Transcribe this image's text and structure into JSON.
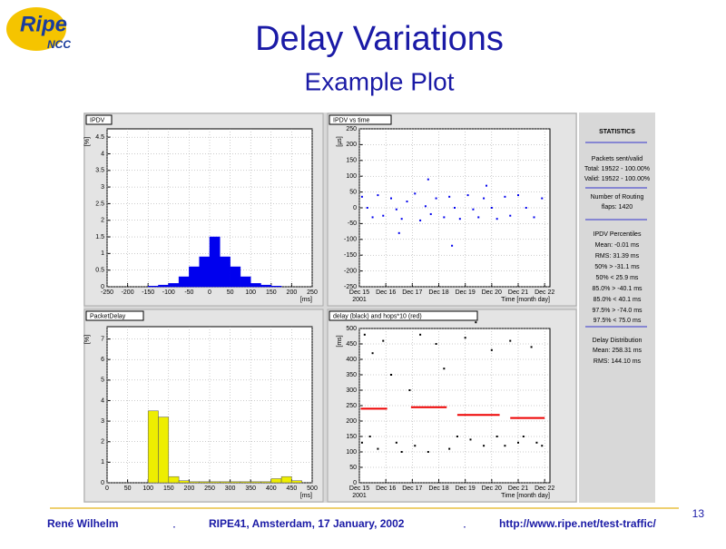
{
  "header": {
    "title": "Delay Variations",
    "subtitle": "Example Plot",
    "logo": "Ripe",
    "logo_sub": "NCC"
  },
  "chart_data": [
    {
      "type": "histogram",
      "title": "IPDV",
      "xlabel": "[ms]",
      "ylabel": "[%]",
      "color": "#0000ee",
      "bins": [
        -250,
        -225,
        -200,
        -175,
        -150,
        -125,
        -100,
        -75,
        -50,
        -25,
        0,
        25,
        50,
        75,
        100,
        125,
        150,
        175,
        200,
        225,
        250
      ],
      "values": [
        0,
        0,
        0,
        0,
        0.02,
        0.05,
        0.1,
        0.3,
        0.6,
        0.9,
        1.5,
        0.9,
        0.6,
        0.3,
        0.1,
        0.05,
        0.02,
        0,
        0,
        0
      ],
      "xlim": [
        -250,
        250
      ],
      "xticks": [
        -250,
        -200,
        -150,
        -100,
        -50,
        0,
        50,
        100,
        150,
        200,
        250
      ],
      "ylim": [
        0,
        4.75
      ],
      "yticks": [
        0,
        0.5,
        1,
        1.5,
        2,
        2.5,
        3,
        3.5,
        4,
        4.5
      ],
      "grid": true
    },
    {
      "type": "scatter",
      "title": "IPDV vs time",
      "xlabel": "Time [month day]",
      "ylabel": "[µs]",
      "x_note": "2001",
      "series": [
        {
          "color": "#0000ee",
          "x": [
            15.1,
            15.3,
            15.5,
            15.7,
            15.9,
            16.2,
            16.4,
            16.6,
            16.8,
            17.1,
            17.3,
            17.5,
            17.7,
            17.9,
            18.2,
            18.4,
            18.6,
            18.8,
            19.1,
            19.3,
            19.5,
            19.7,
            20.0,
            20.2,
            20.5,
            20.7,
            21.0,
            21.3,
            21.6,
            21.9,
            16.5,
            17.6,
            18.5,
            19.8
          ],
          "values": [
            35,
            0,
            -30,
            40,
            -25,
            30,
            -5,
            -35,
            20,
            45,
            -40,
            5,
            -20,
            30,
            -30,
            35,
            0,
            -35,
            40,
            -5,
            -30,
            30,
            0,
            -35,
            35,
            -25,
            40,
            0,
            -30,
            30,
            -80,
            90,
            -120,
            70
          ]
        }
      ],
      "xlim": [
        15,
        22.2
      ],
      "xticks": [
        {
          "value": 15,
          "label": "Dec 15"
        },
        {
          "value": 16,
          "label": "Dec 16"
        },
        {
          "value": 17,
          "label": "Dec 17"
        },
        {
          "value": 18,
          "label": "Dec 18"
        },
        {
          "value": 19,
          "label": "Dec 19"
        },
        {
          "value": 20,
          "label": "Dec 20"
        },
        {
          "value": 21,
          "label": "Dec 21"
        },
        {
          "value": 22,
          "label": "Dec 22"
        }
      ],
      "ylim": [
        -250,
        250
      ],
      "yticks": [
        -250,
        -200,
        -150,
        -100,
        -50,
        0,
        50,
        100,
        150,
        200,
        250
      ],
      "grid": true
    },
    {
      "type": "histogram",
      "title": "PacketDelay",
      "xlabel": "[ms]",
      "ylabel": "[%]",
      "color": "#eeee00",
      "bins": [
        0,
        25,
        50,
        75,
        100,
        125,
        150,
        175,
        200,
        225,
        250,
        275,
        300,
        325,
        350,
        375,
        400,
        425,
        450,
        475,
        500
      ],
      "values": [
        0,
        0,
        0,
        0,
        3.5,
        3.2,
        0.3,
        0.1,
        0.05,
        0.05,
        0.05,
        0.05,
        0.05,
        0.05,
        0.05,
        0.05,
        0.2,
        0.3,
        0.1,
        0
      ],
      "xlim": [
        0,
        500
      ],
      "xticks": [
        0,
        50,
        100,
        150,
        200,
        250,
        300,
        350,
        400,
        450,
        500
      ],
      "ylim": [
        0,
        7.6
      ],
      "yticks": [
        0,
        1,
        2,
        3,
        4,
        5,
        6,
        7
      ],
      "grid": true
    },
    {
      "type": "scatter",
      "title": "delay (black) and hops*10 (red)",
      "xlabel": "Time [month day]",
      "ylabel": "[ms]",
      "x_note": "2001",
      "series": [
        {
          "color": "#000000",
          "x": [
            15.1,
            15.2,
            15.4,
            15.5,
            15.7,
            15.9,
            16.2,
            16.4,
            16.6,
            16.9,
            17.1,
            17.3,
            17.6,
            17.9,
            18.2,
            18.4,
            18.7,
            19.0,
            19.2,
            19.4,
            19.7,
            20.0,
            20.2,
            20.5,
            20.7,
            21.0,
            21.2,
            21.5,
            21.7,
            21.9
          ],
          "values": [
            130,
            480,
            150,
            420,
            110,
            460,
            350,
            130,
            100,
            300,
            120,
            480,
            100,
            450,
            370,
            110,
            150,
            470,
            140,
            520,
            120,
            430,
            150,
            120,
            460,
            130,
            150,
            440,
            130,
            120
          ]
        },
        {
          "color": "#ee0000",
          "mode": "line",
          "x": [
            15.05,
            16.05,
            16.5,
            16.95,
            18.3,
            18.5,
            18.7,
            20.3,
            20.5,
            20.7,
            22
          ],
          "values": [
            240,
            240,
            null,
            245,
            245,
            null,
            220,
            220,
            null,
            210,
            210
          ]
        }
      ],
      "xlim": [
        15,
        22.2
      ],
      "xticks": [
        {
          "value": 15,
          "label": "Dec 15"
        },
        {
          "value": 16,
          "label": "Dec 16"
        },
        {
          "value": 17,
          "label": "Dec 17"
        },
        {
          "value": 18,
          "label": "Dec 18"
        },
        {
          "value": 19,
          "label": "Dec 19"
        },
        {
          "value": 20,
          "label": "Dec 20"
        },
        {
          "value": 21,
          "label": "Dec 21"
        },
        {
          "value": 22,
          "label": "Dec 22"
        }
      ],
      "ylim": [
        0,
        500
      ],
      "yticks": [
        0,
        50,
        100,
        150,
        200,
        250,
        300,
        350,
        400,
        450,
        500
      ],
      "grid": true
    }
  ],
  "statistics": [
    "STATISTICS",
    "Packets sent/valid",
    "Total: 19522 - 100.00%",
    "Valid: 19522 - 100.00%",
    "Number of Routing",
    "flaps: 1420",
    "IPDV Percentiles",
    "Mean: -0.01 ms",
    "RMS: 31.39 ms",
    "50% > -31.1 ms",
    "50% < 25.9 ms",
    "85.0% > -40.1 ms",
    "85.0% < 40.1 ms",
    "97.5% > -74.0 ms",
    "97.5% < 75.0 ms",
    "Delay Distribution",
    "Mean: 258.31 ms",
    "RMS: 144.10 ms"
  ],
  "footer": {
    "author": "René Wilhelm",
    "event": "RIPE41, Amsterdam, 17 January, 2002",
    "url": "http://www.ripe.net/test-traffic/",
    "page": "13"
  }
}
